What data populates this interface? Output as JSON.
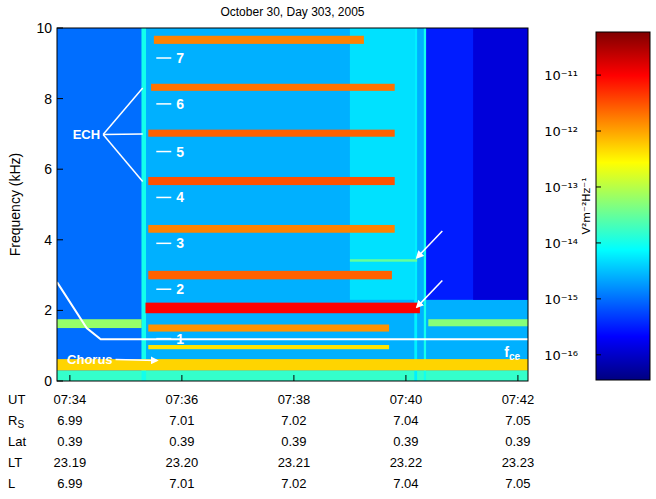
{
  "chart_data": {
    "type": "heatmap",
    "title": "October 30, Day 303, 2005",
    "ylabel": "Frequency (kHz)",
    "xlabel": "UT",
    "xlim": [
      33.77,
      42.18
    ],
    "xticks": [
      {
        "value": 34,
        "label": "07:34"
      },
      {
        "value": 36,
        "label": "07:36"
      },
      {
        "value": 38,
        "label": "07:38"
      },
      {
        "value": 40,
        "label": "07:40"
      },
      {
        "value": 42,
        "label": "07:42"
      }
    ],
    "ylim": [
      0,
      10
    ],
    "yticks": [
      0,
      2,
      4,
      6,
      8,
      10
    ],
    "bands": [
      {
        "t": [
          33.77,
          42.18
        ],
        "f": [
          0,
          10
        ],
        "level": -14.6
      },
      {
        "t": [
          33.77,
          35.28
        ],
        "f": [
          0,
          10
        ],
        "level": -15.0
      },
      {
        "t": [
          39.0,
          40.15
        ],
        "f": [
          2.3,
          10
        ],
        "level": -14.3
      },
      {
        "t": [
          40.36,
          42.18
        ],
        "f": [
          2.3,
          10
        ],
        "level": -15.5
      },
      {
        "t": [
          41.2,
          42.18
        ],
        "f": [
          2.3,
          10
        ],
        "level": -15.9
      },
      {
        "t": [
          33.77,
          42.18
        ],
        "f": [
          0,
          0.3
        ],
        "level": -13.8
      },
      {
        "t": [
          35.28,
          35.36
        ],
        "f": [
          0,
          10
        ],
        "level": -14.0
      },
      {
        "t": [
          40.15,
          40.2
        ],
        "f": [
          0,
          10
        ],
        "level": -14.2
      },
      {
        "t": [
          40.32,
          40.36
        ],
        "f": [
          0,
          10
        ],
        "level": -14.0
      },
      {
        "t": [
          33.77,
          42.18
        ],
        "f": [
          0.3,
          0.62
        ],
        "level": -12.3
      },
      {
        "t": [
          33.77,
          35.28
        ],
        "f": [
          1.5,
          1.75
        ],
        "level": -13.2
      },
      {
        "t": [
          40.4,
          42.18
        ],
        "f": [
          1.55,
          1.75
        ],
        "level": -13.3
      },
      {
        "t": [
          35.4,
          39.7
        ],
        "f": [
          0.9,
          1.02
        ],
        "level": -12.4
      },
      {
        "t": [
          35.4,
          39.7
        ],
        "f": [
          1.4,
          1.6
        ],
        "level": -11.9
      },
      {
        "t": [
          35.35,
          40.25
        ],
        "f": [
          1.92,
          2.22
        ],
        "level": -11.0
      },
      {
        "t": [
          35.4,
          39.75
        ],
        "f": [
          2.88,
          3.12
        ],
        "level": -11.6
      },
      {
        "t": [
          39.0,
          40.2
        ],
        "f": [
          3.38,
          3.45
        ],
        "level": -13.5
      },
      {
        "t": [
          35.4,
          39.8
        ],
        "f": [
          4.2,
          4.42
        ],
        "level": -11.8
      },
      {
        "t": [
          35.4,
          39.8
        ],
        "f": [
          5.55,
          5.78
        ],
        "level": -11.5
      },
      {
        "t": [
          35.4,
          39.8
        ],
        "f": [
          6.92,
          7.12
        ],
        "level": -11.6
      },
      {
        "t": [
          35.45,
          39.8
        ],
        "f": [
          8.22,
          8.42
        ],
        "level": -11.7
      },
      {
        "t": [
          35.5,
          39.25
        ],
        "f": [
          9.55,
          9.78
        ],
        "level": -11.8
      }
    ],
    "colorbar": {
      "range": [
        -16.45,
        -10.23
      ],
      "ticks": [
        {
          "value": -16,
          "label": "10⁻¹⁶"
        },
        {
          "value": -15,
          "label": "10⁻¹⁵"
        },
        {
          "value": -14,
          "label": "10⁻¹⁴"
        },
        {
          "value": -13,
          "label": "10⁻¹³"
        },
        {
          "value": -12,
          "label": "10⁻¹²"
        },
        {
          "value": -11,
          "label": "10⁻¹¹"
        }
      ],
      "label": "V²m⁻²Hz⁻¹"
    },
    "series": [
      {
        "name": "fce",
        "color": "#ffffff",
        "x": [
          33.77,
          34.3,
          34.55,
          42.18
        ],
        "values": [
          2.8,
          1.5,
          1.18,
          1.18
        ]
      }
    ],
    "annotations": [
      {
        "text": "ECH",
        "x": 34.05,
        "y": 7.0
      },
      {
        "text": "Chorus",
        "x": 33.95,
        "y": 0.62
      }
    ],
    "harmonics": [
      {
        "text": "1",
        "x": 35.9,
        "y": 1.2
      },
      {
        "text": "2",
        "x": 35.9,
        "y": 2.6
      },
      {
        "text": "3",
        "x": 35.9,
        "y": 3.9
      },
      {
        "text": "4",
        "x": 35.9,
        "y": 5.2
      },
      {
        "text": "5",
        "x": 35.9,
        "y": 6.5
      },
      {
        "text": "6",
        "x": 35.9,
        "y": 7.85
      },
      {
        "text": "7",
        "x": 35.9,
        "y": 9.15
      }
    ],
    "ephemeris": [
      {
        "name": "RS",
        "values": [
          "6.99",
          "7.01",
          "7.02",
          "7.04",
          "7.05"
        ]
      },
      {
        "name": "Lat",
        "values": [
          "0.39",
          "0.39",
          "0.39",
          "0.39",
          "0.39"
        ]
      },
      {
        "name": "LT",
        "values": [
          "23.19",
          "23.20",
          "23.21",
          "23.22",
          "23.23"
        ]
      },
      {
        "name": "L",
        "values": [
          "6.99",
          "7.01",
          "7.02",
          "7.04",
          "7.05"
        ]
      }
    ]
  }
}
